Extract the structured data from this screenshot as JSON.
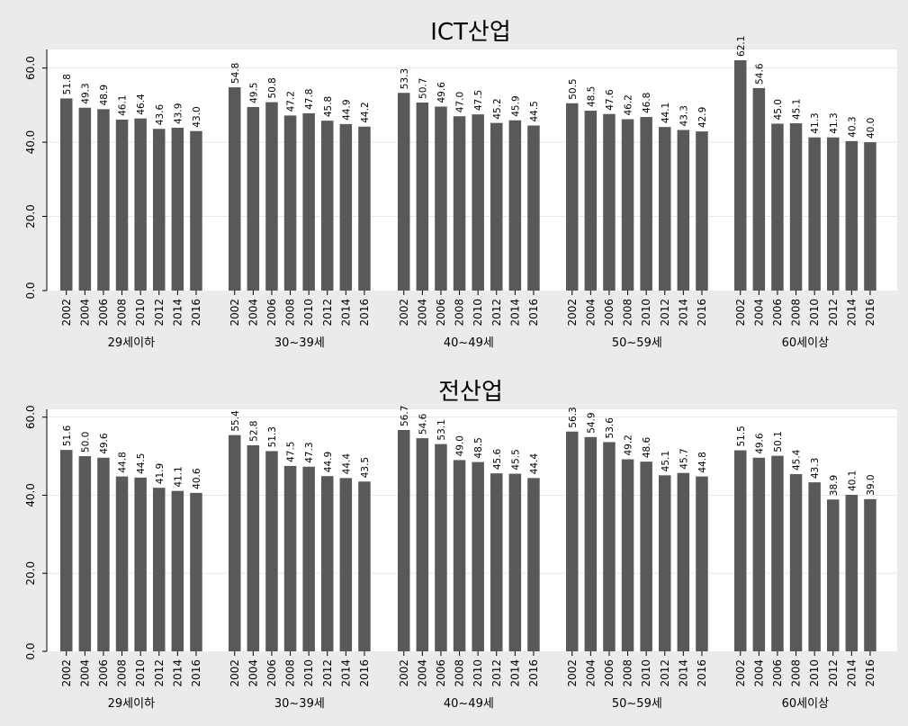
{
  "chart_data": [
    {
      "type": "bar",
      "title": "ICT산업",
      "ylim": [
        0,
        65
      ],
      "yticks": [
        0,
        20,
        40,
        60
      ],
      "ytick_labels": [
        "0.0",
        "20.0",
        "40.0",
        "60.0"
      ],
      "years": [
        "2002",
        "2004",
        "2006",
        "2008",
        "2010",
        "2012",
        "2014",
        "2016"
      ],
      "groups": [
        {
          "label": "29세이하",
          "values": [
            51.8,
            49.3,
            48.9,
            46.1,
            46.4,
            43.6,
            43.9,
            43.0
          ]
        },
        {
          "label": "30~39세",
          "values": [
            54.8,
            49.5,
            50.8,
            47.2,
            47.8,
            45.8,
            44.9,
            44.2
          ]
        },
        {
          "label": "40~49세",
          "values": [
            53.3,
            50.7,
            49.6,
            47.0,
            47.5,
            45.2,
            45.9,
            44.5
          ]
        },
        {
          "label": "50~59세",
          "values": [
            50.5,
            48.5,
            47.6,
            46.2,
            46.8,
            44.1,
            43.3,
            42.9
          ]
        },
        {
          "label": "60세이상",
          "values": [
            62.1,
            54.6,
            45.0,
            45.1,
            41.3,
            41.3,
            40.3,
            40.0
          ]
        }
      ]
    },
    {
      "type": "bar",
      "title": "전산업",
      "ylim": [
        0,
        62
      ],
      "yticks": [
        0,
        20,
        40,
        60
      ],
      "ytick_labels": [
        "0.0",
        "20.0",
        "40.0",
        "60.0"
      ],
      "years": [
        "2002",
        "2004",
        "2006",
        "2008",
        "2010",
        "2012",
        "2014",
        "2016"
      ],
      "groups": [
        {
          "label": "29세이하",
          "values": [
            51.6,
            50.0,
            49.6,
            44.8,
            44.5,
            41.9,
            41.1,
            40.6
          ]
        },
        {
          "label": "30~39세",
          "values": [
            55.4,
            52.8,
            51.3,
            47.5,
            47.3,
            44.9,
            44.4,
            43.5
          ]
        },
        {
          "label": "40~49세",
          "values": [
            56.7,
            54.6,
            53.1,
            49.0,
            48.5,
            45.6,
            45.5,
            44.4
          ]
        },
        {
          "label": "50~59세",
          "values": [
            56.3,
            54.9,
            53.6,
            49.2,
            48.6,
            45.1,
            45.7,
            44.8
          ]
        },
        {
          "label": "60세이상",
          "values": [
            51.5,
            49.6,
            50.1,
            45.4,
            43.3,
            38.9,
            40.1,
            39.0
          ]
        }
      ]
    }
  ],
  "colors": {
    "background": "#ebebeb",
    "plot_area": "#ffffff",
    "bar": "#595959",
    "grid": "#e8e8e8",
    "axis": "#000000"
  }
}
